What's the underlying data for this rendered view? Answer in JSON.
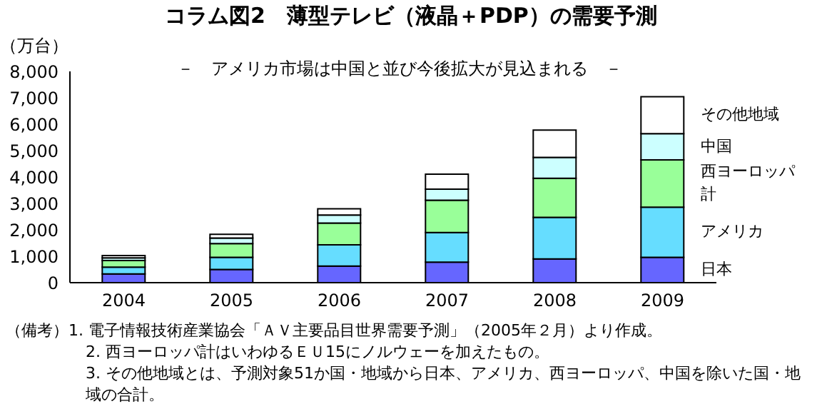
{
  "chart_data": {
    "type": "bar",
    "title": "コラム図2　薄型テレビ（液晶＋PDP）の需要予測",
    "subtitle": "－　アメリカ市場は中国と並び今後拡大が見込まれる　－",
    "ylabel": "（万台）",
    "categories": [
      "2004",
      "2005",
      "2006",
      "2007",
      "2008",
      "2009"
    ],
    "stacked": true,
    "ylim": [
      0,
      8000
    ],
    "yticks": [
      {
        "value": 0,
        "label": "0"
      },
      {
        "value": 1000,
        "label": "1,000"
      },
      {
        "value": 2000,
        "label": "2,000"
      },
      {
        "value": 3000,
        "label": "3,000"
      },
      {
        "value": 4000,
        "label": "4,000"
      },
      {
        "value": 5000,
        "label": "5,000"
      },
      {
        "value": 6000,
        "label": "6,000"
      },
      {
        "value": 7000,
        "label": "7,000"
      },
      {
        "value": 8000,
        "label": "8,000"
      }
    ],
    "grid": false,
    "legend": false,
    "series": [
      {
        "name": "日本",
        "color": "#6666ff",
        "values": [
          330,
          500,
          630,
          780,
          900,
          960
        ]
      },
      {
        "name": "アメリカ",
        "color": "#66ddff",
        "values": [
          260,
          460,
          800,
          1120,
          1570,
          1900
        ]
      },
      {
        "name": "西ヨーロッパ計",
        "color": "#99ff99",
        "values": [
          250,
          520,
          830,
          1220,
          1480,
          1790
        ]
      },
      {
        "name": "中国",
        "color": "#ccffff",
        "values": [
          100,
          210,
          300,
          420,
          790,
          990
        ]
      },
      {
        "name": "その他地域",
        "color": "#ffffff",
        "values": [
          90,
          140,
          240,
          570,
          1040,
          1400
        ]
      }
    ],
    "annotations": [
      "（備考）1. 電子情報技術産業協会「ＡＶ主要品目世界需要予測」（2005年２月）より作成。",
      "2. 西ヨーロッパ計はいわゆるＥＵ15にノルウェーを加えたもの。",
      "3. その他地域とは、予測対象51か国・地域から日本、アメリカ、西ヨーロッパ、中国を除いた国・地域の合計。"
    ]
  }
}
